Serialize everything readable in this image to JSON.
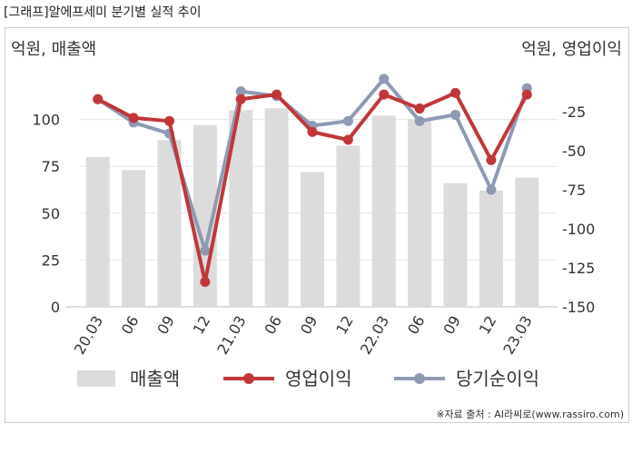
{
  "header": {
    "title": "[그래프]알에프세미 분기별 실적 추이"
  },
  "source": "※자료 출처 : AI라씨로(www.rassiro.com)",
  "colors": {
    "revenue": "#dcdcdc",
    "op_income": "#c0373a",
    "net_income": "#8e9ab3",
    "grid": "#e6e6e6",
    "axis": "#bdbdbd",
    "text": "#333333"
  },
  "chart_data": {
    "type": "bar+line",
    "categories": [
      "20.03",
      "06",
      "09",
      "12",
      "21.03",
      "06",
      "09",
      "12",
      "22.03",
      "06",
      "09",
      "12",
      "23.03"
    ],
    "left_axis": {
      "label": "억원, 매출액",
      "ylim": [
        0,
        125
      ],
      "ticks": [
        0,
        25,
        50,
        75,
        100
      ]
    },
    "right_axis": {
      "label": "억원, 영업이익",
      "ylim": [
        -150,
        0
      ],
      "ticks": [
        -25,
        -50,
        -75,
        -100,
        -125,
        -150
      ]
    },
    "grid": true,
    "legend_position": "bottom",
    "series": [
      {
        "name": "매출액",
        "type": "bar",
        "axis": "left",
        "values": [
          80,
          73,
          89,
          97,
          105,
          106,
          72,
          86,
          102,
          100,
          66,
          62,
          69
        ]
      },
      {
        "name": "영업이익",
        "type": "line",
        "axis": "right",
        "values": [
          -17,
          -29,
          -31,
          -134,
          -17,
          -14,
          -38,
          -43,
          -14,
          -23,
          -13,
          -56,
          -14
        ]
      },
      {
        "name": "당기순이익",
        "type": "line",
        "axis": "right",
        "values": [
          -17,
          -32,
          -39,
          -114,
          -12,
          -15,
          -34,
          -31,
          -4,
          -31,
          -27,
          -75,
          -10
        ]
      }
    ]
  }
}
